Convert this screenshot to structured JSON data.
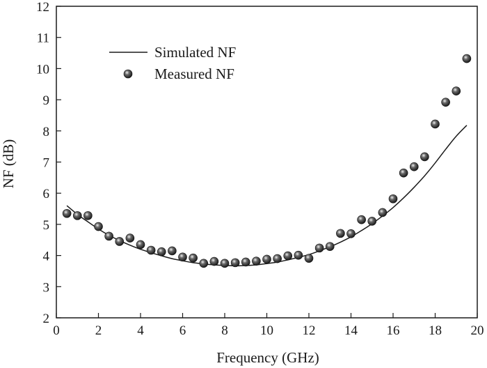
{
  "chart_data": {
    "type": "scatter",
    "title": "",
    "xlabel": "Frequency (GHz)",
    "ylabel": "NF (dB)",
    "xlim": [
      0,
      20
    ],
    "ylim": [
      2,
      12
    ],
    "xticks": [
      0,
      2,
      4,
      6,
      8,
      10,
      12,
      14,
      16,
      18,
      20
    ],
    "yticks": [
      2,
      3,
      4,
      5,
      6,
      7,
      8,
      9,
      10,
      11,
      12
    ],
    "grid": false,
    "legend_position": "top-left",
    "series": [
      {
        "name": "Simulated NF",
        "style": "line",
        "color": "#1a1a1a",
        "x": [
          0.5,
          1,
          1.5,
          2,
          2.5,
          3,
          3.5,
          4,
          4.5,
          5,
          5.5,
          6,
          6.5,
          7,
          7.5,
          8,
          8.5,
          9,
          9.5,
          10,
          10.5,
          11,
          11.5,
          12,
          12.5,
          13,
          13.5,
          14,
          14.5,
          15,
          15.5,
          16,
          16.5,
          17,
          17.5,
          18,
          18.5,
          19,
          19.5
        ],
        "values": [
          5.6,
          5.32,
          5.08,
          4.85,
          4.65,
          4.48,
          4.33,
          4.2,
          4.09,
          3.99,
          3.9,
          3.83,
          3.77,
          3.73,
          3.7,
          3.68,
          3.67,
          3.68,
          3.7,
          3.74,
          3.79,
          3.86,
          3.94,
          4.03,
          4.15,
          4.28,
          4.43,
          4.6,
          4.8,
          5.02,
          5.27,
          5.54,
          5.85,
          6.19,
          6.56,
          6.97,
          7.41,
          7.83,
          8.18
        ]
      },
      {
        "name": "Measured NF",
        "style": "marker",
        "color": "#1a1a1a",
        "x": [
          0.5,
          1,
          1.5,
          2,
          2.5,
          3,
          3.5,
          4,
          4.5,
          5,
          5.5,
          6,
          6.5,
          7,
          7.5,
          8,
          8.5,
          9,
          9.5,
          10,
          10.5,
          11,
          11.5,
          12,
          12.5,
          13,
          13.5,
          14,
          14.5,
          15,
          15.5,
          16,
          16.5,
          17,
          17.5,
          18,
          18.5,
          19,
          19.5
        ],
        "values": [
          5.35,
          5.28,
          5.28,
          4.93,
          4.62,
          4.45,
          4.56,
          4.35,
          4.17,
          4.12,
          4.15,
          3.95,
          3.92,
          3.75,
          3.81,
          3.75,
          3.77,
          3.79,
          3.82,
          3.88,
          3.9,
          3.99,
          4.01,
          3.91,
          4.24,
          4.29,
          4.71,
          4.7,
          5.15,
          5.1,
          5.38,
          5.82,
          6.65,
          6.85,
          7.17,
          8.22,
          8.92,
          9.28,
          10.32
        ]
      }
    ]
  }
}
